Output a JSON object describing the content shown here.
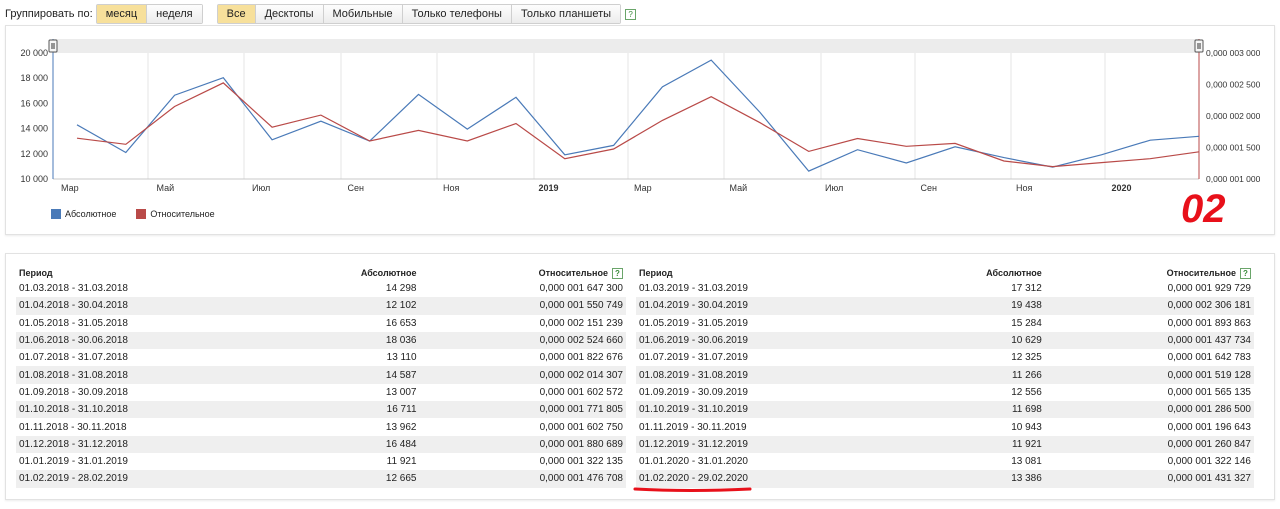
{
  "toolbar": {
    "group_label": "Группировать по:",
    "group_buttons": [
      "месяц",
      "неделя"
    ],
    "device_buttons": [
      "Все",
      "Десктопы",
      "Мобильные",
      "Только телефоны",
      "Только планшеты"
    ],
    "help": "?"
  },
  "chart_data": {
    "type": "line",
    "x": [
      "2018-03",
      "2018-04",
      "2018-05",
      "2018-06",
      "2018-07",
      "2018-08",
      "2018-09",
      "2018-10",
      "2018-11",
      "2018-12",
      "2019-01",
      "2019-02",
      "2019-03",
      "2019-04",
      "2019-05",
      "2019-06",
      "2019-07",
      "2019-08",
      "2019-09",
      "2019-10",
      "2019-11",
      "2019-12",
      "2020-01",
      "2020-02"
    ],
    "x_tick_labels": [
      "Мар",
      "Май",
      "Июл",
      "Сен",
      "Ноя",
      "2019",
      "Мар",
      "Май",
      "Июл",
      "Сен",
      "Ноя",
      "2020"
    ],
    "series": [
      {
        "name": "Абсолютное",
        "axis": "left",
        "color": "#4a7ab8",
        "values": [
          14298,
          12102,
          16653,
          18036,
          13110,
          14587,
          13007,
          16711,
          13962,
          16484,
          11921,
          12665,
          17312,
          19438,
          15284,
          10629,
          12325,
          11266,
          12556,
          11698,
          10943,
          11921,
          13081,
          13386
        ]
      },
      {
        "name": "Относительное",
        "axis": "right",
        "color": "#b94a48",
        "values": [
          1.6473e-06,
          1.5507e-06,
          2.1512e-06,
          2.5247e-06,
          1.8227e-06,
          2.0143e-06,
          1.6026e-06,
          1.7718e-06,
          1.6028e-06,
          1.8807e-06,
          1.3221e-06,
          1.4767e-06,
          1.9297e-06,
          2.3062e-06,
          1.8939e-06,
          1.4377e-06,
          1.6428e-06,
          1.5191e-06,
          1.5651e-06,
          1.2865e-06,
          1.1966e-06,
          1.2608e-06,
          1.3221e-06,
          1.4313e-06
        ]
      }
    ],
    "y_left": {
      "ylim": [
        10000,
        20000
      ],
      "ticks": [
        "10 000",
        "12 000",
        "14 000",
        "16 000",
        "18 000",
        "20 000"
      ]
    },
    "y_right": {
      "ylim": [
        1e-06,
        3e-06
      ],
      "ticks": [
        "0,000 001 000",
        "0,000 001 500",
        "0,000 002 000",
        "0,000 002 500",
        "0,000 003 000"
      ]
    },
    "grid": true,
    "legend": "bottom-left"
  },
  "table": {
    "headers": [
      "Период",
      "Абсолютное",
      "Относительное"
    ],
    "left": [
      [
        "01.03.2018 - 31.03.2018",
        "14 298",
        "0,000 001 647 300"
      ],
      [
        "01.04.2018 - 30.04.2018",
        "12 102",
        "0,000 001 550 749"
      ],
      [
        "01.05.2018 - 31.05.2018",
        "16 653",
        "0,000 002 151 239"
      ],
      [
        "01.06.2018 - 30.06.2018",
        "18 036",
        "0,000 002 524 660"
      ],
      [
        "01.07.2018 - 31.07.2018",
        "13 110",
        "0,000 001 822 676"
      ],
      [
        "01.08.2018 - 31.08.2018",
        "14 587",
        "0,000 002 014 307"
      ],
      [
        "01.09.2018 - 30.09.2018",
        "13 007",
        "0,000 001 602 572"
      ],
      [
        "01.10.2018 - 31.10.2018",
        "16 711",
        "0,000 001 771 805"
      ],
      [
        "01.11.2018 - 30.11.2018",
        "13 962",
        "0,000 001 602 750"
      ],
      [
        "01.12.2018 - 31.12.2018",
        "16 484",
        "0,000 001 880 689"
      ],
      [
        "01.01.2019 - 31.01.2019",
        "11 921",
        "0,000 001 322 135"
      ],
      [
        "01.02.2019 - 28.02.2019",
        "12 665",
        "0,000 001 476 708"
      ]
    ],
    "right": [
      [
        "01.03.2019 - 31.03.2019",
        "17 312",
        "0,000 001 929 729"
      ],
      [
        "01.04.2019 - 30.04.2019",
        "19 438",
        "0,000 002 306 181"
      ],
      [
        "01.05.2019 - 31.05.2019",
        "15 284",
        "0,000 001 893 863"
      ],
      [
        "01.06.2019 - 30.06.2019",
        "10 629",
        "0,000 001 437 734"
      ],
      [
        "01.07.2019 - 31.07.2019",
        "12 325",
        "0,000 001 642 783"
      ],
      [
        "01.08.2019 - 31.08.2019",
        "11 266",
        "0,000 001 519 128"
      ],
      [
        "01.09.2019 - 30.09.2019",
        "12 556",
        "0,000 001 565 135"
      ],
      [
        "01.10.2019 - 31.10.2019",
        "11 698",
        "0,000 001 286 500"
      ],
      [
        "01.11.2019 - 30.11.2019",
        "10 943",
        "0,000 001 196 643"
      ],
      [
        "01.12.2019 - 31.12.2019",
        "11 921",
        "0,000 001 260 847"
      ],
      [
        "01.01.2020 - 31.01.2020",
        "13 081",
        "0,000 001 322 146"
      ],
      [
        "01.02.2020 - 29.02.2020",
        "13 386",
        "0,000 001 431 327"
      ]
    ]
  },
  "annotation": {
    "text": "02",
    "color": "#e8101a"
  }
}
